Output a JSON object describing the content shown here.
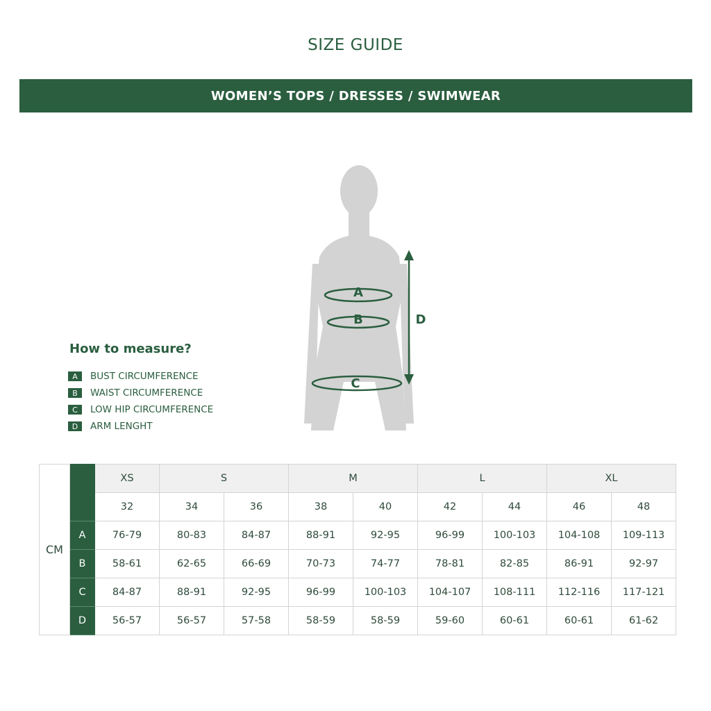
{
  "title": "SIZE GUIDE",
  "banner": "WOMEN’S TOPS / DRESSES / SWIMWEAR",
  "figure": {
    "labels": [
      "A",
      "B",
      "C",
      "D"
    ]
  },
  "how_to": {
    "heading": "How to measure?",
    "items": [
      {
        "key": "A",
        "label": "BUST CIRCUMFERENCE"
      },
      {
        "key": "B",
        "label": "WAIST CIRCUMFERENCE"
      },
      {
        "key": "C",
        "label": "LOW HIP CIRCUMFERENCE"
      },
      {
        "key": "D",
        "label": "ARM LENGHT"
      }
    ]
  },
  "colors": {
    "accent": "#2a5e3f"
  },
  "table": {
    "unit": "CM",
    "sizes": [
      {
        "label": "XS",
        "span": 1
      },
      {
        "label": "S",
        "span": 2
      },
      {
        "label": "M",
        "span": 2
      },
      {
        "label": "L",
        "span": 2
      },
      {
        "label": "XL",
        "span": 2
      }
    ],
    "numbers": [
      "32",
      "34",
      "36",
      "38",
      "40",
      "42",
      "44",
      "46",
      "48"
    ],
    "rows": [
      {
        "key": "A",
        "values": [
          "76-79",
          "80-83",
          "84-87",
          "88-91",
          "92-95",
          "96-99",
          "100-103",
          "104-108",
          "109-113"
        ]
      },
      {
        "key": "B",
        "values": [
          "58-61",
          "62-65",
          "66-69",
          "70-73",
          "74-77",
          "78-81",
          "82-85",
          "86-91",
          "92-97"
        ]
      },
      {
        "key": "C",
        "values": [
          "84-87",
          "88-91",
          "92-95",
          "96-99",
          "100-103",
          "104-107",
          "108-111",
          "112-116",
          "117-121"
        ]
      },
      {
        "key": "D",
        "values": [
          "56-57",
          "56-57",
          "57-58",
          "58-59",
          "58-59",
          "59-60",
          "60-61",
          "60-61",
          "61-62"
        ]
      }
    ]
  }
}
